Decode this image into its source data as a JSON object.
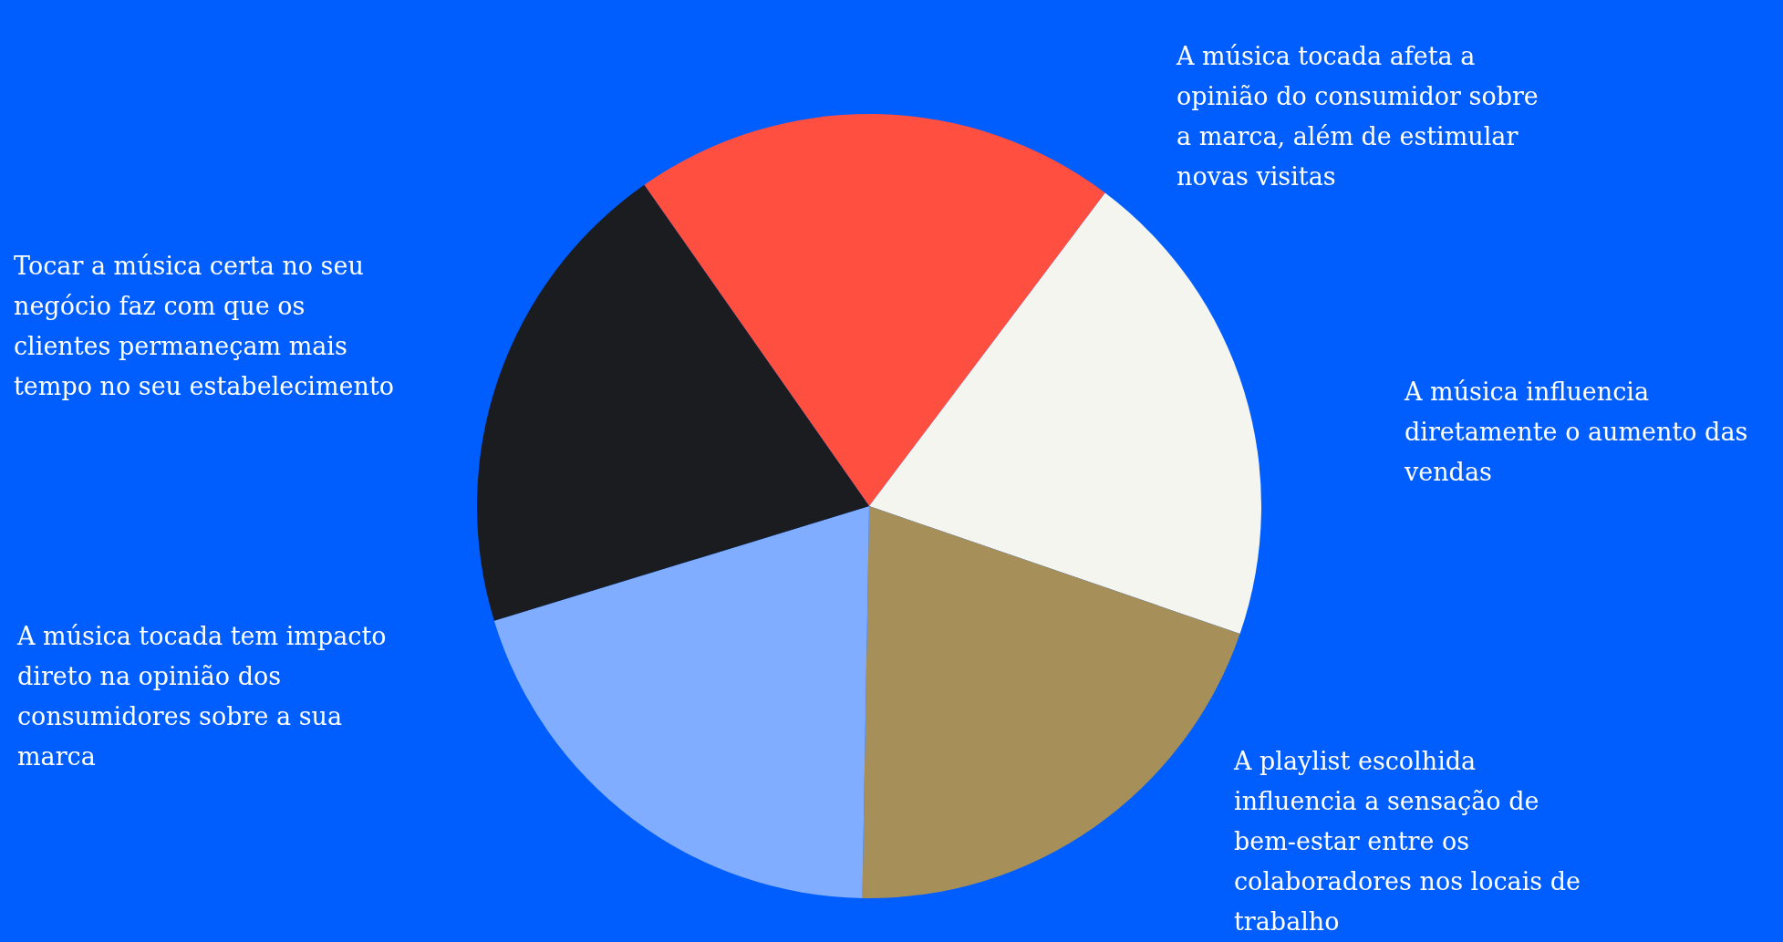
{
  "chart_data": {
    "type": "pie",
    "categories": [
      "A música tocada afeta a opinião do consumidor sobre a marca, além de estimular novas visitas",
      "A música influencia diretamente o aumento das vendas",
      "A playlist escolhida influencia a sensação de bem-estar entre os colaboradores nos locais de trabalho",
      "A música tocada tem impacto direto na opinião dos consumidores sobre a sua marca",
      "Tocar a música certa no seu negócio faz com que os clientes permaneçam mais tempo no seu estabelecimento"
    ],
    "values": [
      20,
      20,
      20,
      20,
      20
    ],
    "colors": [
      "#ff4f40",
      "#f5f5ef",
      "#a68f59",
      "#80adff",
      "#1b1c20"
    ]
  }
}
